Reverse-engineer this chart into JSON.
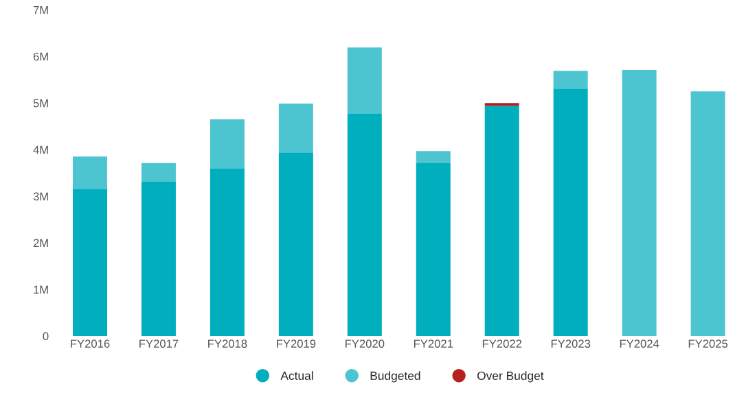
{
  "chart_data": {
    "type": "bar",
    "stacked": true,
    "categories": [
      "FY2016",
      "FY2017",
      "FY2018",
      "FY2019",
      "FY2020",
      "FY2021",
      "FY2022",
      "FY2023",
      "FY2024",
      "FY2025"
    ],
    "series": [
      {
        "name": "Actual",
        "color": "#00aebd",
        "values": [
          3.15,
          3.31,
          3.59,
          3.94,
          4.78,
          3.72,
          4.94,
          5.31,
          null,
          null
        ]
      },
      {
        "name": "Budgeted",
        "color": "#4dc5d0",
        "values": [
          0.7,
          0.4,
          1.06,
          1.05,
          1.41,
          0.25,
          null,
          0.38,
          5.71,
          5.25
        ]
      },
      {
        "name": "Over Budget",
        "color": "#b5211f",
        "values": [
          null,
          null,
          null,
          null,
          null,
          null,
          0.06,
          null,
          null,
          null
        ]
      }
    ],
    "ylim": [
      0,
      7
    ],
    "yticks": [
      {
        "value": 0,
        "label": "0"
      },
      {
        "value": 1,
        "label": "1M"
      },
      {
        "value": 2,
        "label": "2M"
      },
      {
        "value": 3,
        "label": "3M"
      },
      {
        "value": 4,
        "label": "4M"
      },
      {
        "value": 5,
        "label": "5M"
      },
      {
        "value": 6,
        "label": "6M"
      },
      {
        "value": 7,
        "label": "7M"
      }
    ],
    "grid": false,
    "legend": "bottom"
  }
}
